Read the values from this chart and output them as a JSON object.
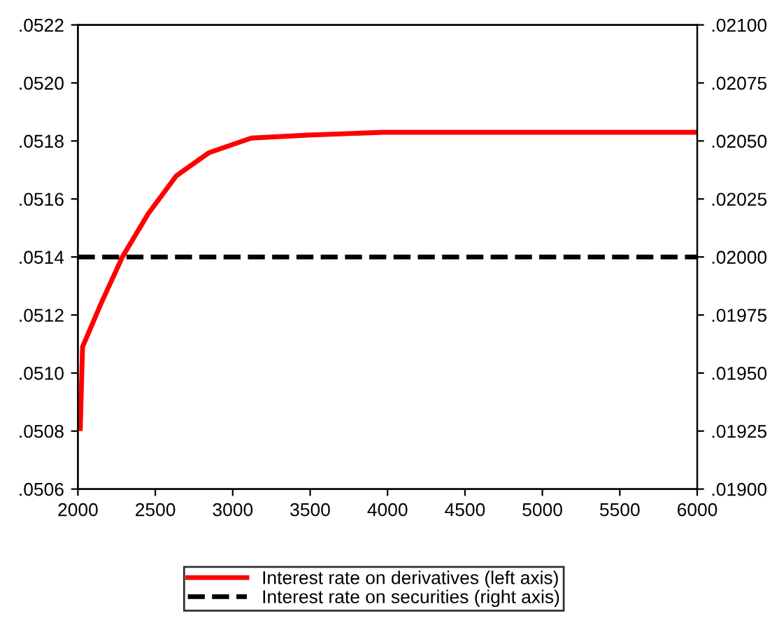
{
  "chart_data": {
    "type": "line",
    "xlim": [
      2000,
      6000
    ],
    "xticks": [
      2000,
      2500,
      3000,
      3500,
      4000,
      4500,
      5000,
      5500,
      6000
    ],
    "ylim": [
      0.0506,
      0.0522
    ],
    "yticks": [
      {
        "value": 0.0506,
        "label": ".0506"
      },
      {
        "value": 0.0508,
        "label": ".0508"
      },
      {
        "value": 0.051,
        "label": ".0510"
      },
      {
        "value": 0.0512,
        "label": ".0512"
      },
      {
        "value": 0.0514,
        "label": ".0514"
      },
      {
        "value": 0.0516,
        "label": ".0516"
      },
      {
        "value": 0.0518,
        "label": ".0518"
      },
      {
        "value": 0.052,
        "label": ".0520"
      },
      {
        "value": 0.0522,
        "label": ".0522"
      }
    ],
    "y2lim": [
      0.019,
      0.021
    ],
    "y2ticks": [
      {
        "value": 0.019,
        "label": ".01900"
      },
      {
        "value": 0.01925,
        "label": ".01925"
      },
      {
        "value": 0.0195,
        "label": ".01950"
      },
      {
        "value": 0.01975,
        "label": ".01975"
      },
      {
        "value": 0.02,
        "label": ".02000"
      },
      {
        "value": 0.02025,
        "label": ".02025"
      },
      {
        "value": 0.0205,
        "label": ".02050"
      },
      {
        "value": 0.02075,
        "label": ".02075"
      },
      {
        "value": 0.021,
        "label": ".02100"
      }
    ],
    "grid": false,
    "legend": "bottom",
    "series": [
      {
        "name": "Interest rate on derivatives (left axis)",
        "color": "#ff0000",
        "line_style": "solid",
        "x": [
          2015,
          2030,
          2150,
          2287,
          2455,
          2636,
          2848,
          3120,
          3485,
          3970,
          4500,
          5000,
          6000
        ],
        "values": [
          0.0508,
          0.05109,
          0.05124,
          0.0514,
          0.05155,
          0.05168,
          0.05176,
          0.05181,
          0.05182,
          0.05183,
          0.05183,
          0.05183,
          0.05183
        ]
      },
      {
        "name": "Interest rate on securities (right axis)",
        "color": "#000000",
        "line_style": "dashed",
        "axis": "y2",
        "x": [
          2000,
          6000
        ],
        "values": [
          0.02,
          0.02
        ]
      }
    ]
  }
}
